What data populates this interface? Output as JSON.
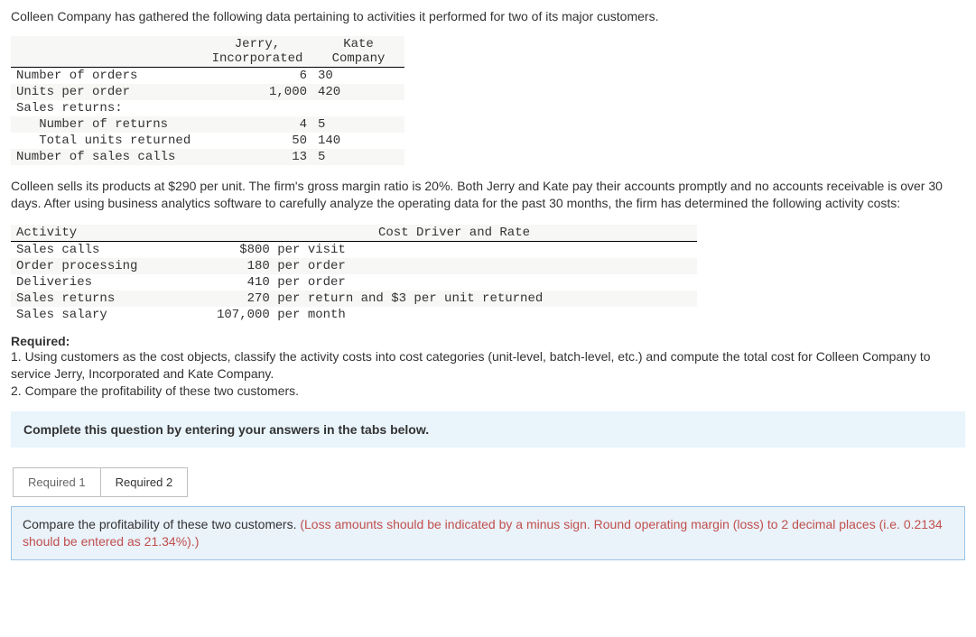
{
  "intro": "Colleen Company has gathered the following data pertaining to activities it performed for two of its major customers.",
  "table1": {
    "col1": "Jerry,\nIncorporated",
    "col2": "Kate\nCompany",
    "rows": [
      {
        "label": "Number of orders",
        "v1": "6",
        "v2": "30"
      },
      {
        "label": "Units per order",
        "v1": "1,000",
        "v2": "420"
      },
      {
        "label": "Sales returns:",
        "v1": "",
        "v2": ""
      },
      {
        "label": "   Number of returns",
        "v1": "4",
        "v2": "5"
      },
      {
        "label": "   Total units returned",
        "v1": "50",
        "v2": "140"
      },
      {
        "label": "Number of sales calls",
        "v1": "13",
        "v2": "5"
      }
    ]
  },
  "para1": "Colleen sells its products at $290 per unit. The firm's gross margin ratio is 20%. Both Jerry and Kate pay their accounts promptly and no accounts receivable is over 30 days. After using business analytics software to carefully analyze the operating data for the past 30 months, the firm has determined the following activity costs:",
  "table2": {
    "h1": "Activity",
    "h2": "Cost Driver and Rate",
    "rows": [
      {
        "a": "Sales calls",
        "r": "   $800 per visit"
      },
      {
        "a": "Order processing",
        "r": "    180 per order"
      },
      {
        "a": "Deliveries",
        "r": "    410 per order"
      },
      {
        "a": "Sales returns",
        "r": "    270 per return and $3 per unit returned"
      },
      {
        "a": "Sales salary",
        "r": "107,000 per month"
      }
    ]
  },
  "requiredHdr": "Required:",
  "req1": "1. Using customers as the cost objects, classify the activity costs into cost categories (unit-level, batch-level, etc.) and compute the total cost for Colleen Company to service Jerry, Incorporated and Kate Company.",
  "req2": "2. Compare the profitability of these two customers.",
  "banner": "Complete this question by entering your answers in the tabs below.",
  "tabs": {
    "t1": "Required 1",
    "t2": "Required 2"
  },
  "instr": {
    "black": "Compare the profitability of these two customers. ",
    "red": "(Loss amounts should be indicated by a minus sign. Round operating margin (loss) to 2 decimal places (i.e. 0.2134 should be entered as 21.34%).)"
  },
  "colors": {
    "banner_bg": "#e9f4fb",
    "box_bg": "#eaf2fa",
    "box_border": "#9cc2e5",
    "red": "#c0504d",
    "shade": "#f7f7f5"
  }
}
